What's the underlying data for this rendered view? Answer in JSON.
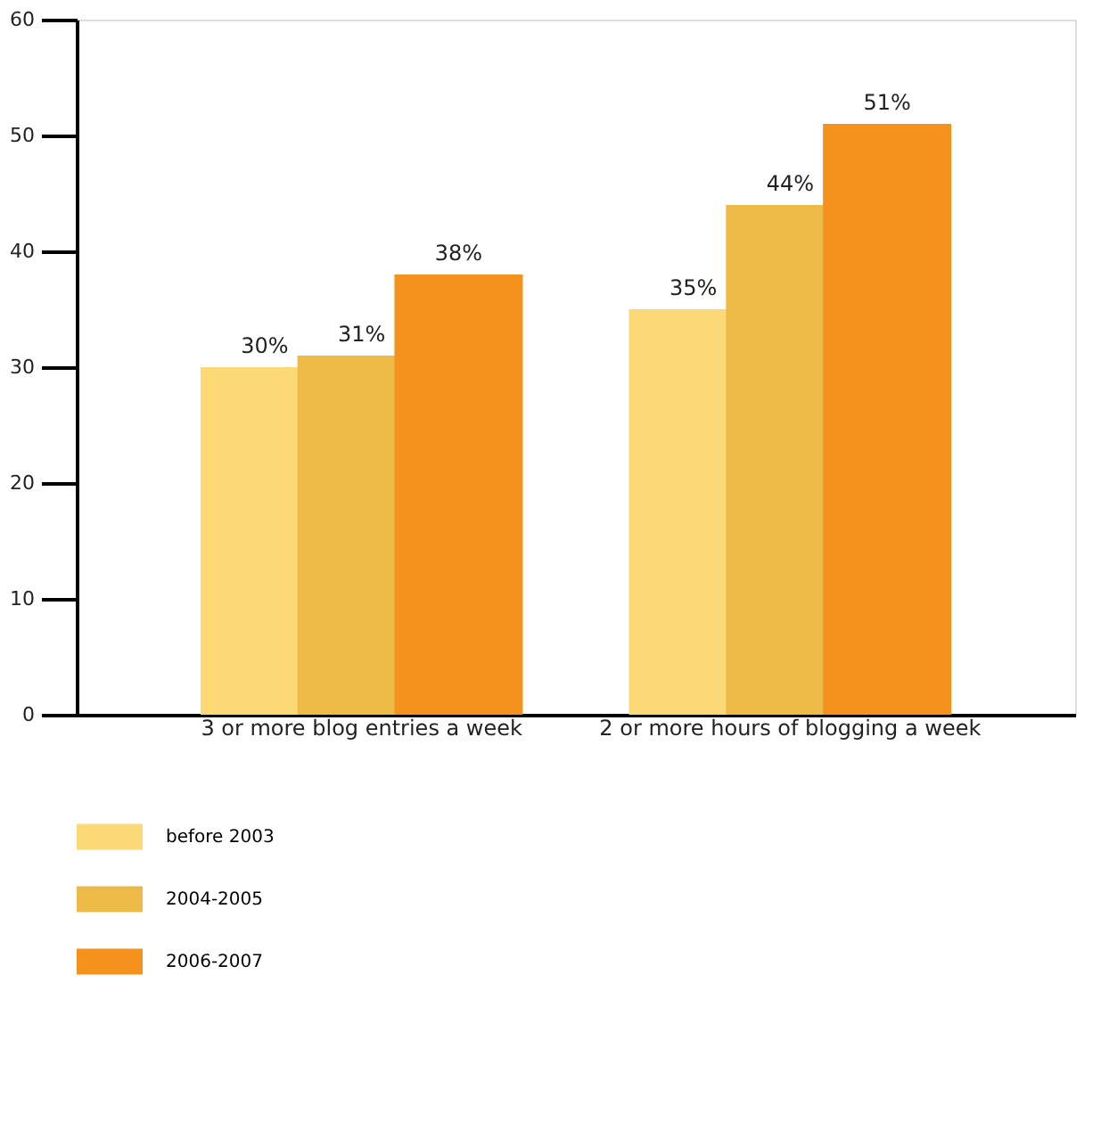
{
  "chart_data": {
    "type": "bar",
    "categories": [
      "3 or more blog entries a week",
      "2 or more hours of blogging a week"
    ],
    "series": [
      {
        "name": "before 2003",
        "color": "#fcd977",
        "values": [
          30,
          35
        ],
        "value_labels": [
          "30%",
          "35%"
        ]
      },
      {
        "name": "2004-2005",
        "color": "#edba48",
        "values": [
          31,
          44
        ],
        "value_labels": [
          "31%",
          "44%"
        ]
      },
      {
        "name": "2006-2007",
        "color": "#f5921e",
        "values": [
          38,
          51
        ],
        "value_labels": [
          "38%",
          "51%"
        ]
      }
    ],
    "ylim": [
      0,
      60
    ],
    "yticks": [
      0,
      10,
      20,
      30,
      40,
      50,
      60
    ],
    "grid": false,
    "legend": "bottom left"
  }
}
